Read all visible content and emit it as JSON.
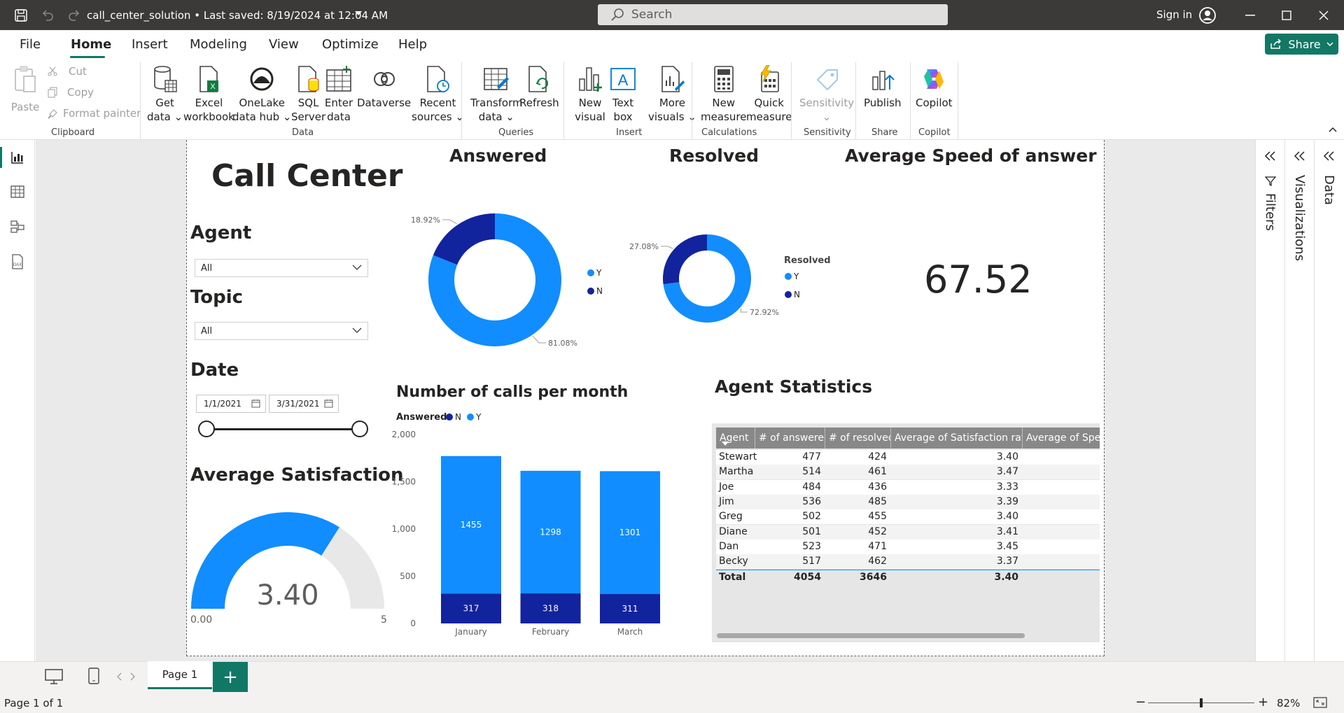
{
  "titlebar": {
    "doc_title": "call_center_solution  •  Last saved: 8/19/2024 at 12:04 AM",
    "search_placeholder": "Search",
    "signin": "Sign in"
  },
  "menu": {
    "tabs": [
      "File",
      "Home",
      "Insert",
      "Modeling",
      "View",
      "Optimize",
      "Help"
    ],
    "active": "Home",
    "share_label": "Share"
  },
  "ribbon": {
    "paste": "Paste",
    "cut": "Cut",
    "copy": "Copy",
    "format_painter": "Format painter",
    "get_data": [
      "Get",
      "data"
    ],
    "excel": [
      "Excel",
      "workbook"
    ],
    "onelake": [
      "OneLake",
      "data hub"
    ],
    "sql": [
      "SQL",
      "Server"
    ],
    "enter_data": [
      "Enter",
      "data"
    ],
    "dataverse": "Dataverse",
    "recent_sources": [
      "Recent",
      "sources"
    ],
    "transform": [
      "Transform",
      "data"
    ],
    "refresh": "Refresh",
    "new_visual": [
      "New",
      "visual"
    ],
    "text_box": [
      "Text",
      "box"
    ],
    "more_visuals": [
      "More",
      "visuals"
    ],
    "new_measure": [
      "New",
      "measure"
    ],
    "quick_measure": [
      "Quick",
      "measure"
    ],
    "sensitivity": "Sensitivity",
    "publish": "Publish",
    "copilot": "Copilot",
    "groups": {
      "clipboard": "Clipboard",
      "data": "Data",
      "queries": "Queries",
      "insert": "Insert",
      "calculations": "Calculations",
      "sensitivity": "Sensitivity",
      "share": "Share",
      "copilot": "Copilot"
    }
  },
  "panes": {
    "filters": "Filters",
    "visualizations": "Visualizations",
    "data": "Data"
  },
  "report": {
    "title": "Call Center",
    "agent_label": "Agent",
    "agent_value": "All",
    "topic_label": "Topic",
    "topic_value": "All",
    "date_label": "Date",
    "date_from": "1/1/2021",
    "date_to": "3/31/2021",
    "avg_satisfaction_title": "Average Satisfaction",
    "answered_title": "Answered",
    "resolved_title": "Resolved",
    "avg_speed_title": "Average Speed of answer",
    "avg_speed_value": "67.52",
    "calls_per_month_title": "Number of calls per month",
    "agent_stats_title": "Agent Statistics"
  },
  "chart_data": [
    {
      "type": "pie",
      "title": "Answered",
      "donut": true,
      "slices": [
        {
          "label": "Y",
          "value": 81.08,
          "color": "#118dff",
          "display": "81.08%"
        },
        {
          "label": "N",
          "value": 18.92,
          "color": "#12239e",
          "display": "18.92%"
        }
      ],
      "legend": [
        "Y",
        "N"
      ],
      "legend_position": "right"
    },
    {
      "type": "pie",
      "title": "Resolved",
      "donut": true,
      "legend_title": "Resolved",
      "slices": [
        {
          "label": "Y",
          "value": 72.92,
          "color": "#118dff",
          "display": "72.92%"
        },
        {
          "label": "N",
          "value": 27.08,
          "color": "#12239e",
          "display": "27.08%"
        }
      ],
      "legend": [
        "Y",
        "N"
      ],
      "legend_position": "right"
    },
    {
      "type": "bar",
      "stacked": true,
      "title": "Number of calls per month",
      "legend_title": "Answered",
      "legend_position": "top-left",
      "categories": [
        "January",
        "February",
        "March"
      ],
      "series": [
        {
          "name": "N",
          "values": [
            317,
            318,
            311
          ],
          "color": "#12239e"
        },
        {
          "name": "Y",
          "values": [
            1455,
            1298,
            1301
          ],
          "color": "#118dff"
        }
      ],
      "yticks": [
        "0",
        "500",
        "1,000",
        "1,500",
        "2,000"
      ],
      "ylim": [
        0,
        2000
      ],
      "grid": false
    },
    {
      "type": "gauge",
      "title": "Average Satisfaction",
      "value": 3.4,
      "display": "3.40",
      "min": 0,
      "max": 5,
      "min_label": "0.00",
      "max_label": "5",
      "color": "#118dff"
    },
    {
      "type": "table",
      "title": "Agent Statistics",
      "columns": [
        "Agent",
        "# of answered",
        "# of resolved",
        "Average of Satisfaction rating",
        "Average of Speed o"
      ],
      "rows": [
        [
          "Stewart",
          "477",
          "424",
          "3.40"
        ],
        [
          "Martha",
          "514",
          "461",
          "3.47"
        ],
        [
          "Joe",
          "484",
          "436",
          "3.33"
        ],
        [
          "Jim",
          "536",
          "485",
          "3.39"
        ],
        [
          "Greg",
          "502",
          "455",
          "3.40"
        ],
        [
          "Diane",
          "501",
          "452",
          "3.41"
        ],
        [
          "Dan",
          "523",
          "471",
          "3.45"
        ],
        [
          "Becky",
          "517",
          "462",
          "3.37"
        ]
      ],
      "total": [
        "Total",
        "4054",
        "3646",
        "3.40"
      ]
    }
  ],
  "bottom": {
    "page_tab": "Page 1",
    "add_page": "+",
    "status": "Page 1 of 1",
    "zoom": "82%"
  },
  "colors": {
    "accent": "#117865",
    "primary_blue": "#118dff",
    "dark_blue": "#12239e",
    "titlebar": "#3b3a39"
  }
}
